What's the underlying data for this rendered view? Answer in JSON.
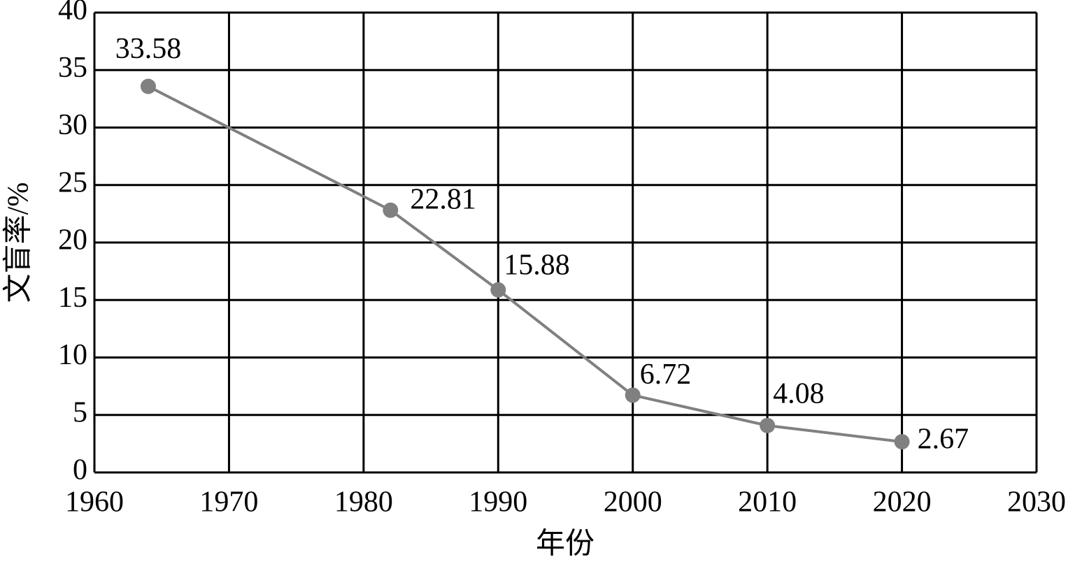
{
  "chart_data": {
    "type": "line",
    "xlabel": "年份",
    "ylabel": "文盲率/%",
    "x": [
      1964,
      1982,
      1990,
      2000,
      2010,
      2020
    ],
    "series": [
      {
        "name": "文盲率",
        "color": "#808080",
        "values": [
          33.58,
          22.81,
          15.88,
          6.72,
          4.08,
          2.67
        ]
      }
    ],
    "xlim": [
      1960,
      2030
    ],
    "xticks": [
      1960,
      1970,
      1980,
      1990,
      2000,
      2010,
      2020,
      2030
    ],
    "ylim": [
      0,
      40
    ],
    "yticks": [
      0,
      5,
      10,
      15,
      20,
      25,
      30,
      35,
      40
    ],
    "grid": true,
    "legend": false
  }
}
